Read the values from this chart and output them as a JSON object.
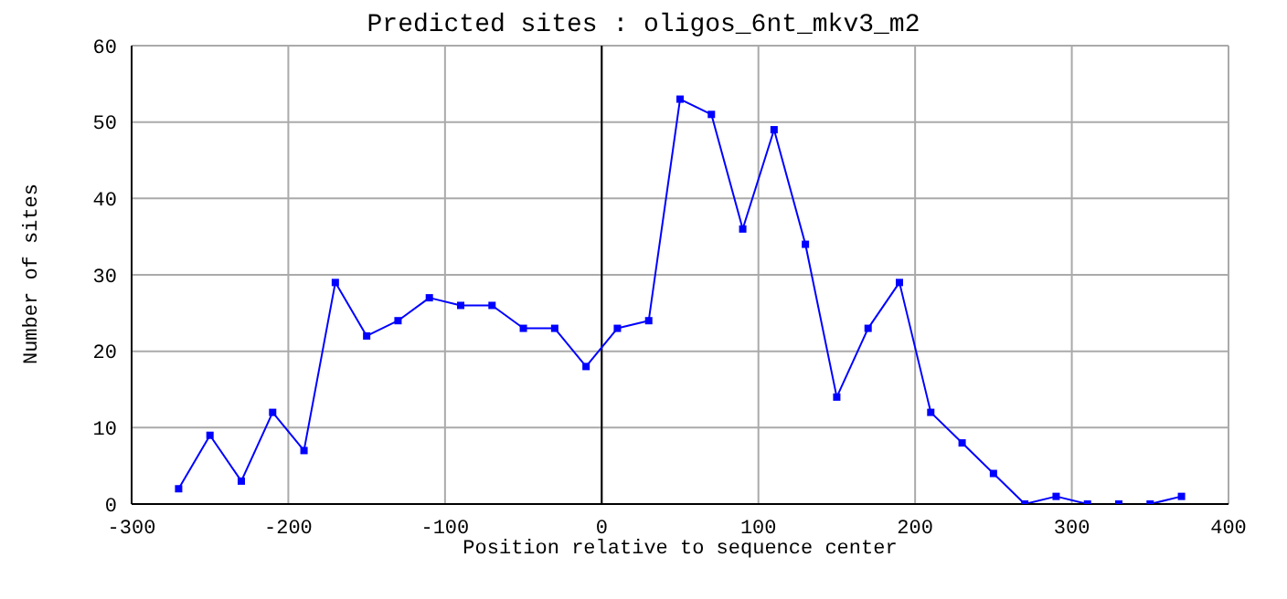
{
  "chart_data": {
    "type": "line",
    "title": "Predicted sites : oligos_6nt_mkv3_m2",
    "xlabel": "Position relative to sequence center",
    "ylabel": "Number of sites",
    "x": [
      -270,
      -250,
      -230,
      -210,
      -190,
      -170,
      -150,
      -130,
      -110,
      -90,
      -70,
      -50,
      -30,
      -10,
      10,
      30,
      50,
      70,
      90,
      110,
      130,
      150,
      170,
      190,
      210,
      230,
      250,
      270,
      290,
      310,
      330,
      350,
      370
    ],
    "series": [
      {
        "color": "#0000ff",
        "values": [
          2,
          9,
          3,
          12,
          7,
          29,
          22,
          24,
          27,
          26,
          26,
          23,
          23,
          18,
          23,
          24,
          53,
          51,
          36,
          49,
          34,
          14,
          23,
          29,
          12,
          8,
          4,
          0,
          1,
          0,
          0,
          0,
          1
        ]
      }
    ],
    "xlim": [
      -300,
      400
    ],
    "xticks": [
      -300,
      -200,
      -100,
      0,
      100,
      200,
      300,
      400
    ],
    "ylim": [
      0,
      60
    ],
    "yticks": [
      0,
      10,
      20,
      30,
      40,
      50,
      60
    ],
    "grid": true,
    "marker": "square",
    "line_style": "solid",
    "ref_lines": [
      {
        "axis": "x",
        "value": 0,
        "color": "#000000"
      }
    ]
  }
}
